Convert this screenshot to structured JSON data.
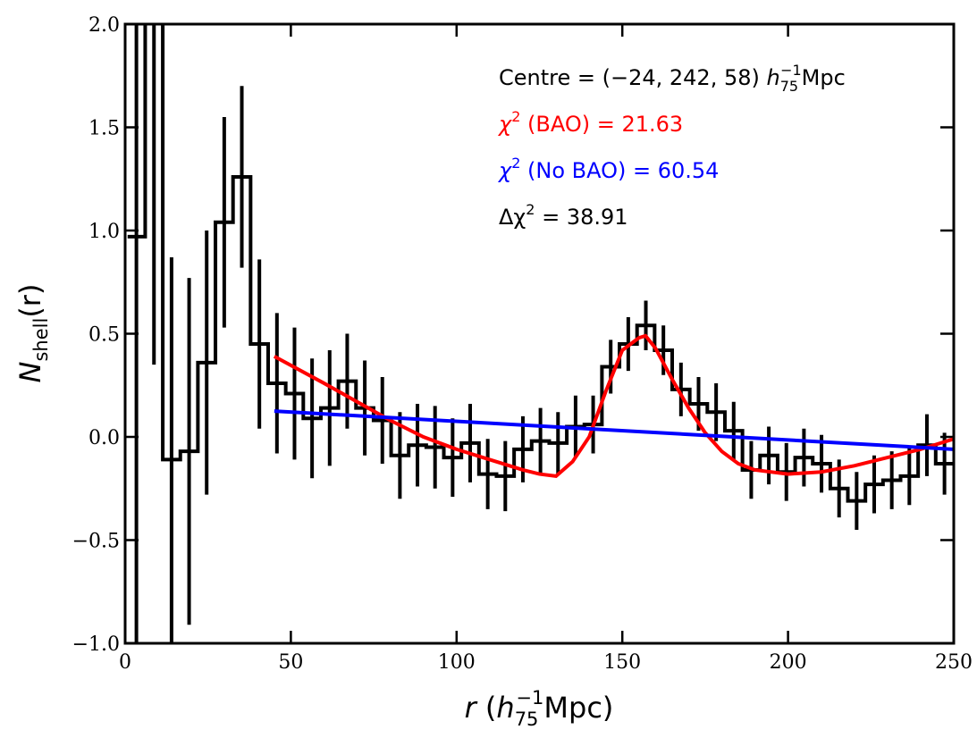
{
  "chart_data": {
    "type": "line",
    "title": "",
    "xlabel": {
      "var": "r",
      "open": " (",
      "h": "h",
      "h_sub": "75",
      "h_sup": "−1",
      "unit": "Mpc)"
    },
    "ylabel": {
      "var": "N",
      "sub": "shell",
      "arg": "(r)"
    },
    "xlim": [
      0,
      250
    ],
    "ylim": [
      -1.0,
      2.0
    ],
    "xticks": [
      0,
      50,
      100,
      150,
      200,
      250
    ],
    "xtick_labels": [
      "0",
      "50",
      "100",
      "150",
      "200",
      "250"
    ],
    "yticks": [
      -1.0,
      -0.5,
      0.0,
      0.5,
      1.0,
      1.5,
      2.0
    ],
    "ytick_labels": [
      "−1.0",
      "−0.5",
      "0.0",
      "0.5",
      "1.0",
      "1.5",
      "2.0"
    ],
    "grid": false,
    "histogram": {
      "name": "N_shell data",
      "color": "#000000",
      "bin_width": 5.3,
      "first_center": 3.4,
      "values": [
        0.97,
        2.6,
        -0.11,
        -0.07,
        0.36,
        1.04,
        1.26,
        0.45,
        0.26,
        0.21,
        0.09,
        0.14,
        0.27,
        0.14,
        0.08,
        -0.09,
        -0.04,
        -0.05,
        -0.1,
        -0.03,
        -0.18,
        -0.19,
        -0.06,
        -0.02,
        -0.03,
        0.05,
        0.06,
        0.34,
        0.45,
        0.54,
        0.42,
        0.23,
        0.16,
        0.12,
        0.03,
        -0.16,
        -0.09,
        -0.17,
        -0.1,
        -0.13,
        -0.25,
        -0.31,
        -0.23,
        -0.21,
        -0.19,
        -0.04,
        -0.13
      ],
      "errors": [
        2.0,
        2.25,
        0.98,
        0.84,
        0.64,
        0.51,
        0.44,
        0.41,
        0.34,
        0.32,
        0.29,
        0.28,
        0.23,
        0.23,
        0.21,
        0.21,
        0.2,
        0.2,
        0.19,
        0.19,
        0.17,
        0.17,
        0.16,
        0.16,
        0.15,
        0.15,
        0.14,
        0.13,
        0.13,
        0.12,
        0.12,
        0.13,
        0.13,
        0.14,
        0.14,
        0.14,
        0.14,
        0.14,
        0.14,
        0.14,
        0.14,
        0.14,
        0.14,
        0.14,
        0.14,
        0.15,
        0.15
      ]
    },
    "series": [
      {
        "name": "BAO model",
        "color": "#ff0000",
        "x": [
          45,
          60,
          70,
          80,
          90,
          100,
          110,
          120,
          125,
          130,
          135,
          140,
          145,
          150,
          155,
          157,
          160,
          165,
          170,
          175,
          180,
          185,
          190,
          200,
          210,
          220,
          230,
          240,
          250
        ],
        "y": [
          0.39,
          0.26,
          0.17,
          0.08,
          0.0,
          -0.06,
          -0.11,
          -0.16,
          -0.18,
          -0.19,
          -0.12,
          0.0,
          0.22,
          0.42,
          0.48,
          0.49,
          0.43,
          0.28,
          0.14,
          0.02,
          -0.07,
          -0.13,
          -0.16,
          -0.18,
          -0.17,
          -0.14,
          -0.1,
          -0.06,
          -0.01
        ]
      },
      {
        "name": "No BAO model",
        "color": "#0000ff",
        "x": [
          45,
          250
        ],
        "y": [
          0.125,
          -0.06
        ]
      }
    ],
    "annotations": {
      "centre": {
        "text": "Centre = (−24, 242, 58) ",
        "h": "h",
        "h_sub": "75",
        "h_sup": "−1",
        "unit": "Mpc",
        "color": "#000000"
      },
      "chi2_bao": {
        "sym": "χ",
        "sup": "2",
        "text": " (BAO) = 21.63",
        "color": "#ff0000"
      },
      "chi2_nobao": {
        "sym": "χ",
        "sup": "2",
        "text": " (No BAO) = 60.54",
        "color": "#0000ff"
      },
      "delta_chi2": {
        "sym": "Δχ",
        "sup": "2",
        "text": " = 38.91",
        "color": "#000000"
      }
    }
  }
}
